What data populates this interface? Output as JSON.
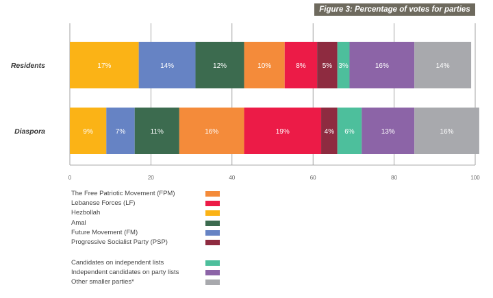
{
  "title": "Figure 3: Percentage of votes for parties",
  "chart_data": {
    "type": "bar",
    "orientation": "horizontal",
    "stacked": true,
    "title": "Figure 3: Percentage of votes for parties",
    "xlim": [
      0,
      100
    ],
    "x_ticks": [
      "0",
      "20",
      "40",
      "60",
      "80",
      "100"
    ],
    "categories": [
      "Residents",
      "Diaspora"
    ],
    "grid": true,
    "legend_position": "bottom-left",
    "series": [
      {
        "name": "Hezbollah",
        "color": "#fbb316",
        "values": [
          17,
          9
        ],
        "labels": [
          "17%",
          "9%"
        ]
      },
      {
        "name": "Future Movement (FM)",
        "color": "#6683c4",
        "values": [
          14,
          7
        ],
        "labels": [
          "14%",
          "7%"
        ]
      },
      {
        "name": "Amal",
        "color": "#3c6b4f",
        "values": [
          12,
          11
        ],
        "labels": [
          "12%",
          "11%"
        ]
      },
      {
        "name": "The Free Patriotic Movement (FPM)",
        "color": "#f48b3a",
        "values": [
          10,
          16
        ],
        "labels": [
          "10%",
          "16%"
        ]
      },
      {
        "name": "Lebanese Forces (LF)",
        "color": "#ec1b47",
        "values": [
          8,
          19
        ],
        "labels": [
          "8%",
          "19%"
        ]
      },
      {
        "name": "Progressive Socialist Party (PSP)",
        "color": "#8e2b40",
        "values": [
          5,
          4
        ],
        "labels": [
          "5%",
          "4%"
        ]
      },
      {
        "name": "Candidates on independent lists",
        "color": "#4dbf9c",
        "values": [
          3,
          6
        ],
        "labels": [
          "3%",
          "6%"
        ]
      },
      {
        "name": "Independent candidates on party lists",
        "color": "#8c64a7",
        "values": [
          16,
          13
        ],
        "labels": [
          "16%",
          "13%"
        ]
      },
      {
        "name": "Other smaller parties*",
        "color": "#a8a9ad",
        "values": [
          14,
          16
        ],
        "labels": [
          "14%",
          "16%"
        ]
      }
    ],
    "legend_groups": [
      [
        "The Free Patriotic Movement (FPM)",
        "Lebanese Forces (LF)",
        "Hezbollah",
        "Amal",
        "Future Movement (FM)",
        "Progressive Socialist Party (PSP)"
      ],
      [
        "Candidates on independent lists",
        "Independent candidates on party lists",
        "Other smaller parties*"
      ]
    ]
  }
}
